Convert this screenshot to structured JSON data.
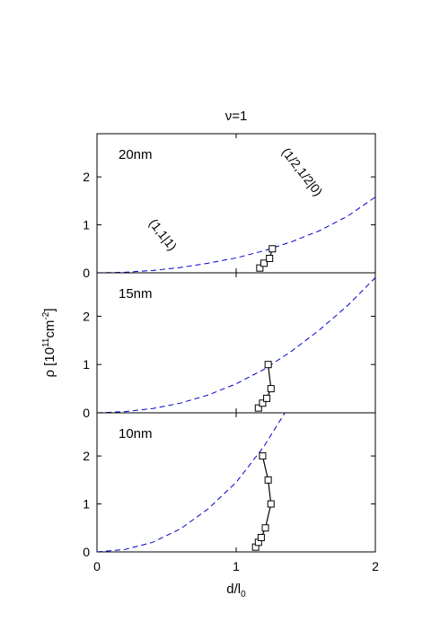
{
  "chart_data": {
    "type": "line",
    "title": "ν=1",
    "xlabel": "d/l",
    "xlabel_sub": "0",
    "ylabel": "ρ [10",
    "ylabel_sup1": "11",
    "ylabel_mid": "cm",
    "ylabel_sup2": "-2",
    "ylabel_end": "]",
    "xlim": [
      0,
      2
    ],
    "x_ticks": [
      "0",
      "1",
      "2"
    ],
    "ylim": [
      0,
      2.9
    ],
    "y_ticks": [
      "0",
      "1",
      "2"
    ],
    "grid": false,
    "panels": [
      {
        "label": "20nm",
        "ylim": [
          0,
          2.9
        ],
        "series": [
          {
            "style": "dashed",
            "color": "#0000cc",
            "x": [
              0,
              0.2,
              0.4,
              0.6,
              0.8,
              1.0,
              1.2,
              1.4,
              1.6,
              1.8,
              2.0
            ],
            "y": [
              0,
              0.012,
              0.048,
              0.11,
              0.2,
              0.31,
              0.46,
              0.65,
              0.88,
              1.18,
              1.58
            ]
          },
          {
            "style": "solid-squares",
            "color": "#000000",
            "x": [
              1.17,
              1.2,
              1.24,
              1.26
            ],
            "y": [
              0.1,
              0.2,
              0.3,
              0.5
            ]
          }
        ],
        "annotations": [
          {
            "text": "(1,1|1)",
            "x": 0.45,
            "y": 0.74
          },
          {
            "text": "(1/2,1/2|0)",
            "x": 1.45,
            "y": 2.05
          }
        ]
      },
      {
        "label": "15nm",
        "ylim": [
          0,
          2.9
        ],
        "series": [
          {
            "style": "dashed",
            "color": "#0000cc",
            "x": [
              0,
              0.2,
              0.4,
              0.6,
              0.8,
              1.0,
              1.2,
              1.4,
              1.6,
              1.8,
              2.0
            ],
            "y": [
              0,
              0.025,
              0.09,
              0.2,
              0.37,
              0.6,
              0.9,
              1.28,
              1.72,
              2.22,
              2.8
            ]
          },
          {
            "style": "solid-squares",
            "color": "#000000",
            "x": [
              1.16,
              1.19,
              1.22,
              1.25,
              1.23
            ],
            "y": [
              0.1,
              0.2,
              0.3,
              0.5,
              1.0
            ]
          }
        ]
      },
      {
        "label": "10nm",
        "ylim": [
          0,
          2.9
        ],
        "series": [
          {
            "style": "dashed",
            "color": "#0000cc",
            "x": [
              0,
              0.2,
              0.4,
              0.6,
              0.8,
              1.0,
              1.2,
              1.35
            ],
            "y": [
              0,
              0.05,
              0.2,
              0.48,
              0.9,
              1.45,
              2.2,
              2.9
            ]
          },
          {
            "style": "solid-squares",
            "color": "#000000",
            "x": [
              1.14,
              1.16,
              1.18,
              1.21,
              1.25,
              1.23,
              1.19
            ],
            "y": [
              0.1,
              0.2,
              0.3,
              0.5,
              1.0,
              1.5,
              2.0
            ]
          }
        ]
      }
    ]
  }
}
